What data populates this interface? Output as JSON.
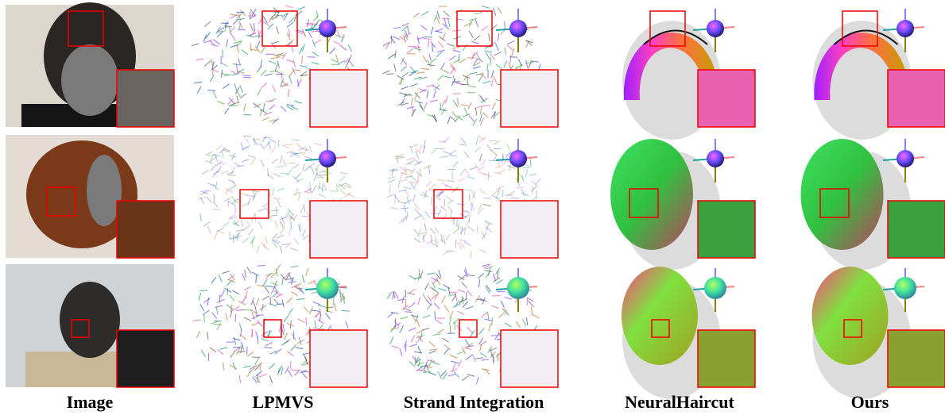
{
  "columns": [
    {
      "label": "Image"
    },
    {
      "label": "LPMVS"
    },
    {
      "label": "Strand Integration"
    },
    {
      "label": "NeuralHaircut"
    },
    {
      "label": "Ours"
    }
  ]
}
